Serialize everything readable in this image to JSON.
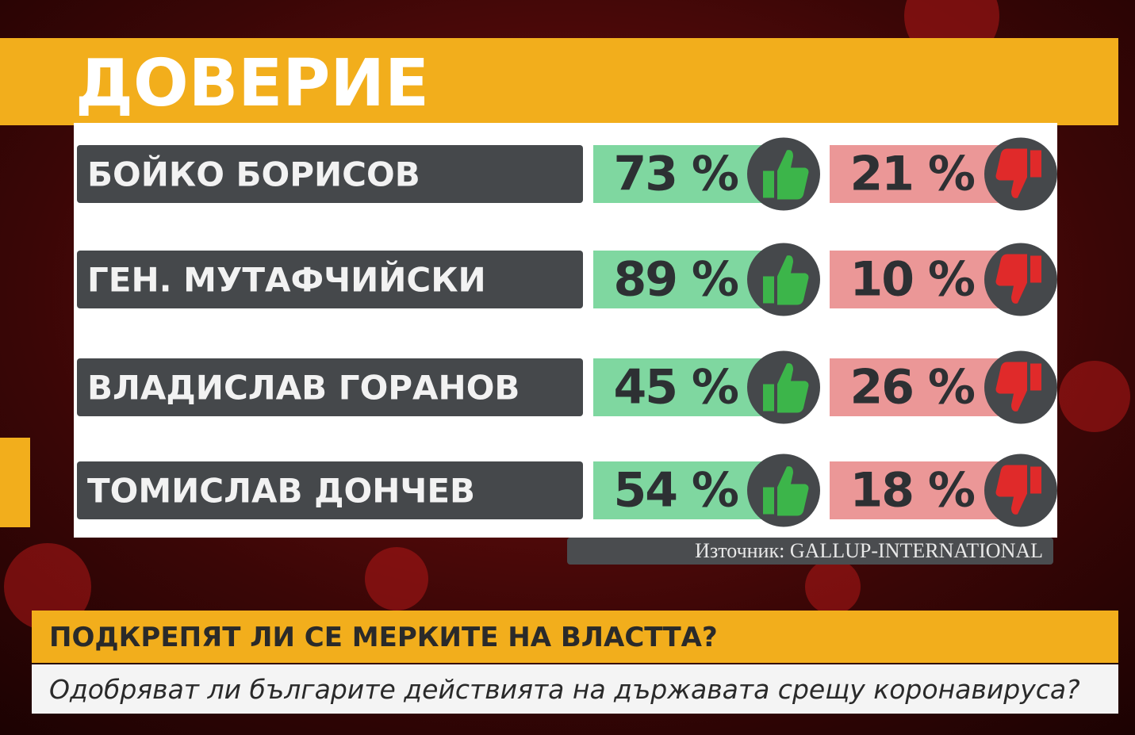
{
  "title": "ДОВЕРИЕ",
  "rows": [
    {
      "name": "БОЙКО БОРИСОВ",
      "approve": "73 %",
      "disapprove": "21 %"
    },
    {
      "name": "ГЕН. МУТАФЧИЙСКИ",
      "approve": "89 %",
      "disapprove": "10 %"
    },
    {
      "name": "ВЛАДИСЛАВ ГОРАНОВ",
      "approve": "45 %",
      "disapprove": "26 %"
    },
    {
      "name": "ТОМИСЛАВ ДОНЧЕВ",
      "approve": "54 %",
      "disapprove": "18 %"
    }
  ],
  "source": "Източник: GALLUP-INTERNATIONAL",
  "headline": "ПОДКРЕПЯТ ЛИ СЕ МЕРКИТЕ НА ВЛАСТТА?",
  "subheadline": "Одобряват ли българите действията на държавата срещу коронавируса?"
}
